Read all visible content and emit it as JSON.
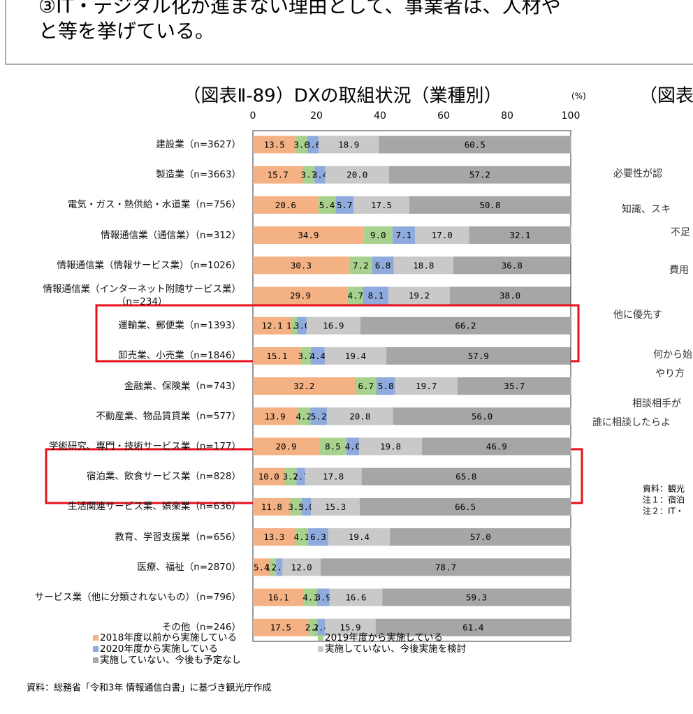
{
  "header": {
    "lines": [
      "③IT・デジタル化が進まない理由として、事業者は、人材や",
      "と等を挙げている。"
    ]
  },
  "chart_data": {
    "type": "stacked-bar-horizontal",
    "title": "（図表Ⅱ-89）DXの取組状況（業種別）",
    "unit_label": "(%)",
    "categories": [
      "建設業（n=3627）",
      "製造業（n=3663）",
      "電気・ガス・熱供給・水道業（n=756）",
      "情報通信業（通信業）（n=312）",
      "情報通信業（情報サービス業）（n=1026）",
      "情報通信業（インターネット附随サービス業）\n（n=234）",
      "運輸業、郵便業（n=1393）",
      "卸売業、小売業（n=1846）",
      "金融業、保険業（n=743）",
      "不動産業、物品賃貸業（n=577）",
      "学術研究、専門・技術サービス業（n=177）",
      "宿泊業、飲食サービス業（n=828）",
      "生活関連サービス業、娯楽業（n=636）",
      "教育、学習支援業（n=656）",
      "医療、福祉（n=2870）",
      "サービス業（他に分類されないもの）（n=796）",
      "その他（n=246）"
    ],
    "series": [
      {
        "name": "2018年度以前から実施している",
        "color": "#f4b183",
        "values": [
          13.5,
          15.7,
          20.6,
          34.9,
          30.3,
          29.9,
          12.1,
          15.1,
          32.2,
          13.9,
          20.9,
          10.0,
          11.8,
          13.3,
          5.4,
          16.1,
          17.5
        ],
        "value_labels": [
          "13.5",
          "15.7",
          "20.6",
          "34.9",
          "30.3",
          "29.9",
          "12.1",
          "15.1",
          "32.2",
          "13.9",
          "20.9",
          "10.0",
          "11.8",
          "13.3",
          "5.4",
          "16.1",
          "17.5"
        ]
      },
      {
        "name": "2019年度から実施している",
        "color": "#a9d18e",
        "values": [
          3.6,
          3.7,
          5.4,
          9.0,
          7.2,
          4.7,
          1.8,
          3.1,
          6.7,
          4.2,
          8.5,
          3.7,
          3.5,
          4.1,
          1.9,
          4.1,
          2.8
        ],
        "value_labels": [
          "3.6",
          "3.7",
          "5.4",
          "9.0",
          "7.2",
          "4.7",
          "1.8",
          "3.1",
          "6.7",
          "4.2",
          "8.5",
          "3.7",
          "3.5",
          "4.1",
          "1.9",
          "4.1",
          "2.8"
        ]
      },
      {
        "name": "2020年度から実施している",
        "color": "#8faadc",
        "values": [
          3.6,
          3.4,
          5.7,
          7.1,
          6.8,
          8.1,
          3.0,
          4.4,
          5.8,
          5.2,
          4.0,
          2.7,
          3.0,
          6.3,
          2.0,
          3.9,
          2.4
        ],
        "value_labels": [
          "3.6",
          "3.4",
          "5.7",
          "7.1",
          "6.8",
          "8.1",
          "3.0",
          "4.4",
          "5.8",
          "5.2",
          "4.0",
          "2.7",
          "3.0",
          "6.3",
          "2.0",
          "3.9",
          "2.4"
        ]
      },
      {
        "name": "実施していない、今後実施を検討",
        "color": "#c9c9c9",
        "values": [
          18.9,
          20.0,
          17.5,
          17.0,
          18.8,
          19.2,
          16.9,
          19.4,
          19.7,
          20.8,
          19.8,
          17.8,
          15.3,
          19.4,
          12.0,
          16.6,
          15.9
        ],
        "value_labels": [
          "18.9",
          "20.0",
          "17.5",
          "17.0",
          "18.8",
          "19.2",
          "16.9",
          "19.4",
          "19.7",
          "20.8",
          "19.8",
          "17.8",
          "15.3",
          "19.4",
          "12.0",
          "16.6",
          "15.9"
        ]
      },
      {
        "name": "実施していない、今後も予定なし",
        "color": "#a6a6a6",
        "values": [
          60.5,
          57.2,
          50.8,
          32.1,
          36.8,
          38.0,
          66.2,
          57.9,
          35.7,
          56.0,
          46.9,
          65.8,
          66.5,
          57.0,
          78.7,
          59.3,
          61.4
        ],
        "value_labels": [
          "60.5",
          "57.2",
          "50.8",
          "32.1",
          "36.8",
          "38.0",
          "66.2",
          "57.9",
          "35.7",
          "56.0",
          "46.9",
          "65.8",
          "66.5",
          "57.0",
          "78.7",
          "59.3",
          "61.4"
        ]
      }
    ],
    "xlim": [
      0,
      100
    ],
    "xticks": [
      0,
      20,
      40,
      60,
      80,
      100
    ],
    "grid": false,
    "source": "資料：総務省「令和3年 情報通信白書」に基づき観光庁作成"
  },
  "side_panel": {
    "title": "（図表",
    "labels": [
      "必要性が認",
      "知識、スキ",
      "不足",
      "費用",
      "他に優先す",
      "何から始",
      "やり方",
      "相談相手が",
      "誰に相談したらよ"
    ],
    "notes": [
      "資料：観光",
      "注１：宿泊",
      "注２：IT・"
    ]
  }
}
